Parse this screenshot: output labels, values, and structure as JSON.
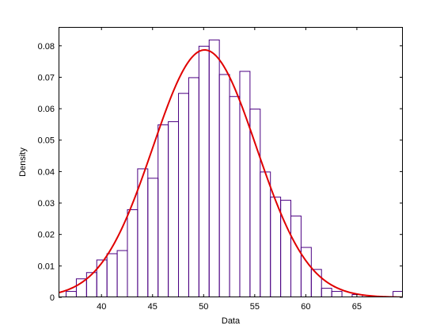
{
  "chart_data": {
    "type": "bar",
    "xlabel": "Data",
    "ylabel": "Density",
    "xlim": [
      35.8,
      69.5
    ],
    "ylim": [
      0,
      0.086
    ],
    "x_ticks": [
      40,
      45,
      50,
      55,
      60,
      65
    ],
    "y_ticks": [
      0,
      0.01,
      0.02,
      0.03,
      0.04,
      0.05,
      0.06,
      0.07,
      0.08
    ],
    "x_tick_labels": [
      "40",
      "45",
      "50",
      "55",
      "60",
      "65"
    ],
    "y_tick_labels": [
      "0",
      "0.01",
      "0.02",
      "0.03",
      "0.04",
      "0.05",
      "0.06",
      "0.07",
      "0.08"
    ],
    "grid": false,
    "histogram": {
      "bin_width": 1,
      "bin_edges_start": 36.5,
      "values": [
        0.002,
        0.006,
        0.008,
        0.012,
        0.014,
        0.015,
        0.028,
        0.041,
        0.038,
        0.055,
        0.056,
        0.065,
        0.07,
        0.08,
        0.082,
        0.071,
        0.064,
        0.072,
        0.06,
        0.04,
        0.032,
        0.031,
        0.026,
        0.016,
        0.009,
        0.003,
        0.002,
        0.0,
        0.001,
        0.0,
        0.0,
        0.0,
        0.002
      ],
      "edge_color": "#4b0082"
    },
    "fit_curve": {
      "distribution": "normal",
      "mean": 50.1,
      "sigma": 5.07,
      "color": "#e00000"
    }
  }
}
